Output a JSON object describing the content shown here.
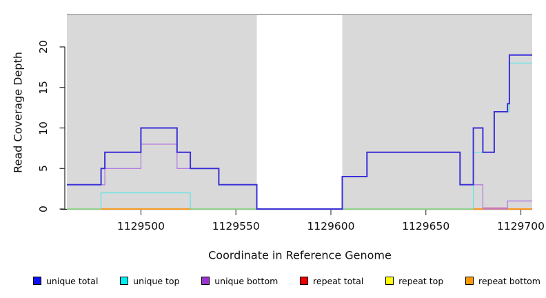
{
  "chart_data": {
    "type": "line",
    "subtype": "step-coverage-plot",
    "title": "",
    "xlabel": "Coordinate in Reference Genome",
    "ylabel": "Read Coverage Depth",
    "xlim": [
      1129461,
      1129706
    ],
    "ylim": [
      0,
      24
    ],
    "grid": false,
    "legend_position": "bottom",
    "panel_bg": "#d9d9d9",
    "panel_border": "#8c8c8c",
    "axis_color": "#222222",
    "tick_color": "#555555",
    "gap_region": {
      "from": 1129561,
      "to": 1129606,
      "color": "#ffffff"
    },
    "x_ticks": [
      {
        "value": 1129500,
        "label": "1129500"
      },
      {
        "value": 1129550,
        "label": "1129550"
      },
      {
        "value": 1129600,
        "label": "1129600"
      },
      {
        "value": 1129650,
        "label": "1129650"
      },
      {
        "value": 1129700,
        "label": "1129700"
      }
    ],
    "y_ticks": [
      {
        "value": 0,
        "label": "0"
      },
      {
        "value": 5,
        "label": "5"
      },
      {
        "value": 10,
        "label": "10"
      },
      {
        "value": 15,
        "label": "15"
      },
      {
        "value": 20,
        "label": "20"
      }
    ],
    "series": [
      {
        "name": "unique total",
        "legend_color": "#1111EE",
        "plot_color": "#3b30d8",
        "lw": 2,
        "steps": [
          [
            1129461,
            3
          ],
          [
            1129479,
            5
          ],
          [
            1129481,
            7
          ],
          [
            1129500,
            10
          ],
          [
            1129519,
            7
          ],
          [
            1129526,
            5
          ],
          [
            1129541,
            3
          ],
          [
            1129561,
            0
          ],
          [
            1129606,
            4
          ],
          [
            1129619,
            7
          ],
          [
            1129668,
            3
          ],
          [
            1129675,
            10
          ],
          [
            1129680,
            7
          ],
          [
            1129686,
            12
          ],
          [
            1129693,
            13
          ],
          [
            1129694,
            19
          ],
          [
            1129706,
            19
          ]
        ]
      },
      {
        "name": "unique top",
        "legend_color": "#00EEEE",
        "plot_color": "#6fe3e3",
        "lw": 1.4,
        "steps": [
          [
            1129461,
            0
          ],
          [
            1129479,
            2
          ],
          [
            1129526,
            0
          ],
          [
            1129675,
            7
          ],
          [
            1129686,
            12
          ],
          [
            1129694,
            18
          ],
          [
            1129706,
            18
          ]
        ]
      },
      {
        "name": "unique bottom",
        "legend_color": "#9A32CD",
        "plot_color": "#b47ce0",
        "lw": 1.3,
        "steps": [
          [
            1129461,
            3
          ],
          [
            1129481,
            5
          ],
          [
            1129500,
            8
          ],
          [
            1129519,
            5
          ],
          [
            1129541,
            3
          ],
          [
            1129561,
            0
          ],
          [
            1129606,
            4
          ],
          [
            1129619,
            7
          ],
          [
            1129668,
            3
          ],
          [
            1129680,
            0
          ],
          [
            1129693,
            1
          ],
          [
            1129706,
            1
          ]
        ]
      },
      {
        "name": "repeat total",
        "legend_color": "#EE0000",
        "plot_color": "#dd2222",
        "lw": 1.4,
        "steps": [
          [
            1129461,
            0
          ],
          [
            1129706,
            0
          ]
        ]
      },
      {
        "name": "repeat top",
        "legend_color": "#FFFF00",
        "plot_color": "#e8e800",
        "lw": 1.4,
        "steps": [
          [
            1129461,
            0
          ],
          [
            1129706,
            0
          ]
        ]
      },
      {
        "name": "repeat bottom",
        "legend_color": "#FF9800",
        "plot_color": "#ff9517",
        "lw": 1.8,
        "steps": [
          [
            1129461,
            0
          ],
          [
            1129706,
            0
          ]
        ]
      }
    ],
    "baseline_overlays": [
      {
        "color": "#8ed78e",
        "from": 1129461,
        "to": 1129675,
        "y": 0,
        "lw": 1.6
      },
      {
        "color": "#ff9517",
        "from": 1129479,
        "to": 1129526,
        "y": 0,
        "lw": 1.8
      },
      {
        "color": "#ff9517",
        "from": 1129675,
        "to": 1129706,
        "y": 0,
        "lw": 1.8
      },
      {
        "color": "#d365b5",
        "from": 1129680,
        "to": 1129693,
        "y": 0.13,
        "lw": 1.4
      }
    ],
    "paint_layers": [
      {
        "series": 3
      },
      {
        "series": 4
      },
      {
        "series": 1
      },
      {
        "segments": "baseline_overlays"
      },
      {
        "series": 2
      },
      {
        "series": 0
      }
    ]
  }
}
